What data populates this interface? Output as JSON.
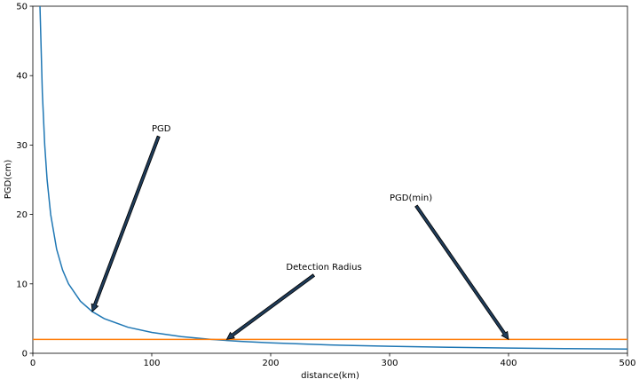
{
  "chart_data": {
    "type": "line",
    "xlabel": "distance(km)",
    "ylabel": "PGD(cm)",
    "xlim": [
      0,
      500
    ],
    "ylim": [
      0,
      50
    ],
    "xticks": [
      0,
      100,
      200,
      300,
      400,
      500
    ],
    "yticks": [
      0,
      10,
      20,
      30,
      40,
      50
    ],
    "grid": false,
    "series": [
      {
        "color": "#1f77b4",
        "x": [
          6,
          8,
          10,
          12,
          15,
          20,
          25,
          30,
          40,
          50,
          60,
          80,
          100,
          125,
          150,
          175,
          200,
          250,
          300,
          350,
          400,
          450,
          500
        ],
        "values": [
          50,
          37.5,
          30,
          25,
          20,
          15,
          12,
          10,
          7.5,
          6,
          5,
          3.75,
          3,
          2.4,
          2,
          1.71,
          1.5,
          1.2,
          1,
          0.86,
          0.75,
          0.67,
          0.6
        ]
      },
      {
        "color": "#ff7f0e",
        "x": [
          0,
          500
        ],
        "values": [
          2,
          2
        ]
      }
    ],
    "annotations": [
      {
        "text": "PGD",
        "xy": [
          50,
          6
        ],
        "xytext": [
          100,
          32
        ]
      },
      {
        "text": "Detection Radius",
        "xy": [
          163,
          2
        ],
        "xytext": [
          213,
          12
        ]
      },
      {
        "text": "PGD(min)",
        "xy": [
          400,
          2
        ],
        "xytext": [
          300,
          22
        ]
      }
    ]
  }
}
